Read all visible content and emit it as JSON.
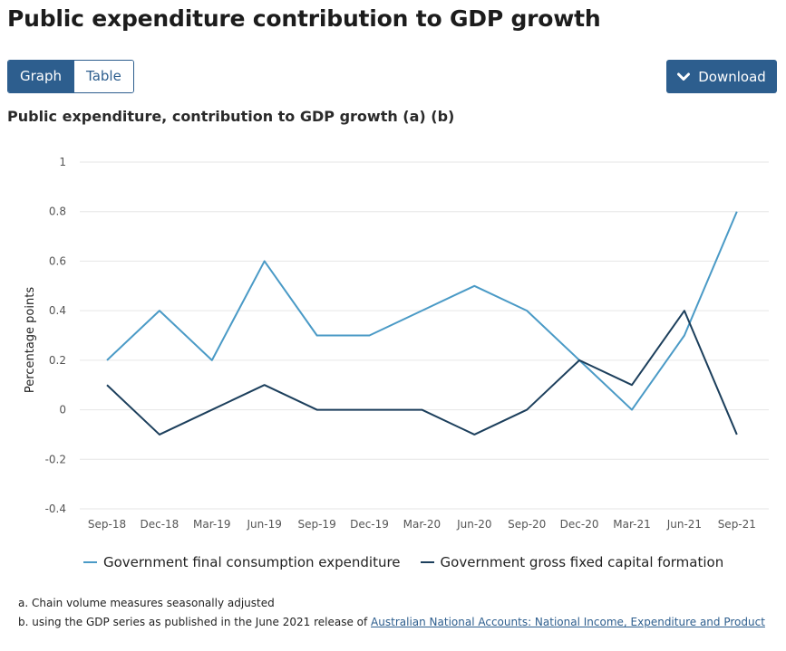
{
  "page": {
    "title": "Public expenditure contribution to GDP growth"
  },
  "view_toggle": {
    "graph_label": "Graph",
    "table_label": "Table"
  },
  "download": {
    "label": "Download",
    "icon": "chevron-down-icon"
  },
  "colors": {
    "accent": "#2d5e8e",
    "series1": "#4a9ac6",
    "series2": "#1c3f5c",
    "grid": "#e6e6e6"
  },
  "chart_data": {
    "type": "line",
    "title": "Public expenditure, contribution to GDP growth (a) (b)",
    "xlabel": "",
    "ylabel": "Percentage points",
    "ylim": [
      -0.4,
      1
    ],
    "yticks": [
      1,
      0.8,
      0.6,
      0.4,
      0.2,
      0,
      -0.2,
      -0.4
    ],
    "ytick_labels": [
      "1",
      "0.8",
      "0.6",
      "0.4",
      "0.2",
      "0",
      "-0.2",
      "-0.4"
    ],
    "grid": "horizontal",
    "legend_position": "bottom",
    "categories": [
      "Sep-18",
      "Dec-18",
      "Mar-19",
      "Jun-19",
      "Sep-19",
      "Dec-19",
      "Mar-20",
      "Jun-20",
      "Sep-20",
      "Dec-20",
      "Mar-21",
      "Jun-21",
      "Sep-21"
    ],
    "series": [
      {
        "name": "Government final consumption expenditure",
        "color": "#4a9ac6",
        "values": [
          0.2,
          0.4,
          0.2,
          0.6,
          0.3,
          0.3,
          0.4,
          0.5,
          0.4,
          0.2,
          0.0,
          0.3,
          0.8
        ]
      },
      {
        "name": "Government gross fixed capital formation",
        "color": "#1c3f5c",
        "values": [
          0.1,
          -0.1,
          0.0,
          0.1,
          0.0,
          0.0,
          0.0,
          -0.1,
          0.0,
          0.2,
          0.1,
          0.4,
          -0.1
        ]
      }
    ]
  },
  "footnotes": {
    "a": "a. Chain volume measures seasonally adjusted",
    "b_prefix": "b. using the GDP series as published in the June 2021 release of ",
    "b_link": "Australian National Accounts: National Income, Expenditure and Product"
  }
}
